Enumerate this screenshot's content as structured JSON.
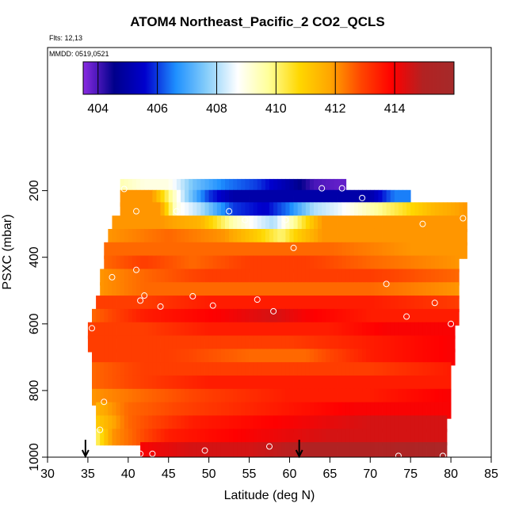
{
  "chart_data": {
    "type": "heatmap",
    "title": "ATOM4 Northeast_Pacific_2 CO2_QCLS",
    "notes": [
      "Flts: 12,13",
      "MMDD: 0519,0521"
    ],
    "xlabel": "Latitude (deg N)",
    "ylabel": "PSXC (mbar)",
    "xlim": [
      30,
      85
    ],
    "ylim": [
      1000,
      0
    ],
    "y_reversed": true,
    "x_ticks": [
      "30",
      "35",
      "40",
      "45",
      "50",
      "55",
      "60",
      "65",
      "70",
      "75",
      "80",
      "85"
    ],
    "y_ticks": [
      "200",
      "400",
      "600",
      "800",
      "1000"
    ],
    "colorbar": {
      "range": [
        403.5,
        416
      ],
      "ticks": [
        "404",
        "406",
        "408",
        "410",
        "412",
        "414"
      ],
      "colors": [
        "#8a2be2",
        "#00008b",
        "#0000cd",
        "#1e90ff",
        "#87cefa",
        "#ffffff",
        "#ffff99",
        "#ffd700",
        "#ffa500",
        "#ff4500",
        "#ff0000",
        "#b22222",
        "#a52a2a"
      ]
    },
    "arrows_at_latitude": [
      34.7,
      61.2
    ],
    "rows": [
      {
        "p": 190,
        "lat_min": 39,
        "lat_max": 67,
        "values": [
          [
            39,
            409.5
          ],
          [
            42,
            409
          ],
          [
            45,
            409
          ],
          [
            48,
            407.5
          ],
          [
            52,
            406.5
          ],
          [
            56,
            406
          ],
          [
            60,
            405
          ],
          [
            63,
            404
          ],
          [
            66,
            403.8
          ]
        ]
      },
      {
        "p": 223,
        "lat_min": 39,
        "lat_max": 75,
        "values": [
          [
            39,
            412
          ],
          [
            43,
            412
          ],
          [
            45,
            410
          ],
          [
            47,
            408
          ],
          [
            50,
            406
          ],
          [
            53,
            405
          ],
          [
            57,
            405
          ],
          [
            62,
            405
          ],
          [
            67,
            405
          ],
          [
            70,
            405
          ],
          [
            73,
            406.5
          ]
        ]
      },
      {
        "p": 260,
        "lat_min": 39,
        "lat_max": 82,
        "values": [
          [
            39,
            412
          ],
          [
            44,
            412
          ],
          [
            46,
            409
          ],
          [
            49,
            408
          ],
          [
            53,
            406
          ],
          [
            57,
            405.5
          ],
          [
            60,
            406.5
          ],
          [
            63,
            408
          ],
          [
            66,
            408.5
          ],
          [
            70,
            409.5
          ],
          [
            74,
            410.5
          ],
          [
            78,
            411.5
          ],
          [
            82,
            412
          ]
        ]
      },
      {
        "p": 300,
        "lat_min": 38,
        "lat_max": 82,
        "values": [
          [
            38,
            412
          ],
          [
            44,
            412
          ],
          [
            49,
            411.5
          ],
          [
            53,
            409.5
          ],
          [
            56,
            408.5
          ],
          [
            58,
            408
          ],
          [
            61,
            410
          ],
          [
            64,
            412
          ],
          [
            68,
            412
          ],
          [
            74,
            412
          ],
          [
            82,
            412
          ]
        ]
      },
      {
        "p": 340,
        "lat_min": 37.5,
        "lat_max": 82,
        "values": [
          [
            37.5,
            412
          ],
          [
            45,
            412.5
          ],
          [
            52,
            412
          ],
          [
            56,
            411
          ],
          [
            59,
            410
          ],
          [
            61,
            411
          ],
          [
            64,
            412
          ],
          [
            70,
            412
          ],
          [
            82,
            412
          ]
        ]
      },
      {
        "p": 380,
        "lat_min": 37,
        "lat_max": 82,
        "values": [
          [
            37,
            412.5
          ],
          [
            45,
            412.5
          ],
          [
            55,
            412.5
          ],
          [
            60,
            412.5
          ],
          [
            65,
            412.5
          ],
          [
            75,
            412
          ],
          [
            82,
            412
          ]
        ]
      },
      {
        "p": 420,
        "lat_min": 37,
        "lat_max": 81,
        "values": [
          [
            37,
            412.5
          ],
          [
            42,
            413
          ],
          [
            48,
            412.5
          ],
          [
            55,
            413
          ],
          [
            62,
            413
          ],
          [
            70,
            412.5
          ],
          [
            81,
            412
          ]
        ]
      },
      {
        "p": 460,
        "lat_min": 36.5,
        "lat_max": 81,
        "values": [
          [
            36.5,
            412
          ],
          [
            42,
            412.5
          ],
          [
            50,
            413
          ],
          [
            60,
            413
          ],
          [
            70,
            413
          ],
          [
            81,
            412.5
          ]
        ]
      },
      {
        "p": 500,
        "lat_min": 36.5,
        "lat_max": 81,
        "values": [
          [
            36.5,
            412
          ],
          [
            42,
            412.5
          ],
          [
            50,
            412.5
          ],
          [
            60,
            412.5
          ],
          [
            70,
            412.5
          ],
          [
            81,
            412
          ]
        ]
      },
      {
        "p": 540,
        "lat_min": 36,
        "lat_max": 81,
        "values": [
          [
            36,
            413
          ],
          [
            42,
            413
          ],
          [
            50,
            413.5
          ],
          [
            60,
            413.5
          ],
          [
            70,
            413.5
          ],
          [
            81,
            413
          ]
        ]
      },
      {
        "p": 580,
        "lat_min": 35.5,
        "lat_max": 81,
        "values": [
          [
            35.5,
            412.5
          ],
          [
            42,
            413.5
          ],
          [
            52,
            414
          ],
          [
            58,
            414.5
          ],
          [
            62,
            414
          ],
          [
            70,
            413.5
          ],
          [
            81,
            413.5
          ]
        ]
      },
      {
        "p": 620,
        "lat_min": 35,
        "lat_max": 80.5,
        "values": [
          [
            35,
            413
          ],
          [
            42,
            413
          ],
          [
            50,
            413.5
          ],
          [
            58,
            413.5
          ],
          [
            65,
            413.5
          ],
          [
            72,
            414
          ],
          [
            80.5,
            414
          ]
        ]
      },
      {
        "p": 660,
        "lat_min": 35,
        "lat_max": 80.5,
        "values": [
          [
            35,
            413
          ],
          [
            42,
            413
          ],
          [
            50,
            413
          ],
          [
            60,
            413
          ],
          [
            70,
            413.5
          ],
          [
            80.5,
            414
          ]
        ]
      },
      {
        "p": 700,
        "lat_min": 35.5,
        "lat_max": 80.5,
        "values": [
          [
            35.5,
            413
          ],
          [
            45,
            413
          ],
          [
            55,
            412.5
          ],
          [
            62,
            412.5
          ],
          [
            70,
            413.5
          ],
          [
            80.5,
            414
          ]
        ]
      },
      {
        "p": 740,
        "lat_min": 35.5,
        "lat_max": 80,
        "values": [
          [
            35.5,
            412.5
          ],
          [
            42,
            413
          ],
          [
            50,
            413
          ],
          [
            60,
            413
          ],
          [
            70,
            413
          ],
          [
            80,
            413.5
          ]
        ]
      },
      {
        "p": 780,
        "lat_min": 35.5,
        "lat_max": 80,
        "values": [
          [
            35.5,
            412.5
          ],
          [
            42,
            413
          ],
          [
            50,
            413.5
          ],
          [
            60,
            413.5
          ],
          [
            70,
            413.5
          ],
          [
            80,
            413.5
          ]
        ]
      },
      {
        "p": 820,
        "lat_min": 35.5,
        "lat_max": 80,
        "values": [
          [
            35.5,
            412
          ],
          [
            42,
            412.5
          ],
          [
            50,
            413
          ],
          [
            60,
            413.5
          ],
          [
            70,
            413.5
          ],
          [
            80,
            414
          ]
        ]
      },
      {
        "p": 860,
        "lat_min": 36,
        "lat_max": 80,
        "values": [
          [
            36,
            411.5
          ],
          [
            40,
            412.5
          ],
          [
            48,
            413
          ],
          [
            58,
            413.5
          ],
          [
            68,
            414
          ],
          [
            80,
            414
          ]
        ]
      },
      {
        "p": 900,
        "lat_min": 36,
        "lat_max": 79.5,
        "values": [
          [
            36,
            411
          ],
          [
            40,
            412.5
          ],
          [
            48,
            413.5
          ],
          [
            60,
            414
          ],
          [
            70,
            414.5
          ],
          [
            79.5,
            414.5
          ]
        ]
      },
      {
        "p": 940,
        "lat_min": 36,
        "lat_max": 79.5,
        "values": [
          [
            36,
            410
          ],
          [
            38,
            412
          ],
          [
            45,
            413.5
          ],
          [
            55,
            414
          ],
          [
            65,
            414.5
          ],
          [
            79.5,
            414.5
          ]
        ]
      },
      {
        "p": 980,
        "lat_min": 41.5,
        "lat_max": 79.5,
        "values": [
          [
            41.5,
            414
          ],
          [
            48,
            414.5
          ],
          [
            55,
            414.5
          ],
          [
            62,
            415
          ],
          [
            70,
            415
          ],
          [
            79.5,
            415.5
          ]
        ]
      }
    ],
    "points": [
      [
        39.5,
        195
      ],
      [
        66.5,
        193
      ],
      [
        64,
        193
      ],
      [
        69,
        222
      ],
      [
        41,
        262
      ],
      [
        46,
        262
      ],
      [
        52.5,
        262
      ],
      [
        54.5,
        288
      ],
      [
        59.5,
        288
      ],
      [
        76.5,
        300
      ],
      [
        81.5,
        283
      ],
      [
        60.5,
        372
      ],
      [
        38,
        460
      ],
      [
        41,
        438
      ],
      [
        42,
        515
      ],
      [
        41.5,
        530
      ],
      [
        44,
        548
      ],
      [
        48,
        517
      ],
      [
        50.5,
        545
      ],
      [
        56,
        527
      ],
      [
        58,
        562
      ],
      [
        72,
        480
      ],
      [
        78,
        537
      ],
      [
        35.5,
        613
      ],
      [
        74.5,
        578
      ],
      [
        80,
        600
      ],
      [
        37,
        834
      ],
      [
        36.5,
        918
      ],
      [
        41.5,
        990
      ],
      [
        43,
        990
      ],
      [
        49.5,
        980
      ],
      [
        57.5,
        968
      ],
      [
        73.5,
        996
      ],
      [
        79,
        996
      ]
    ]
  }
}
